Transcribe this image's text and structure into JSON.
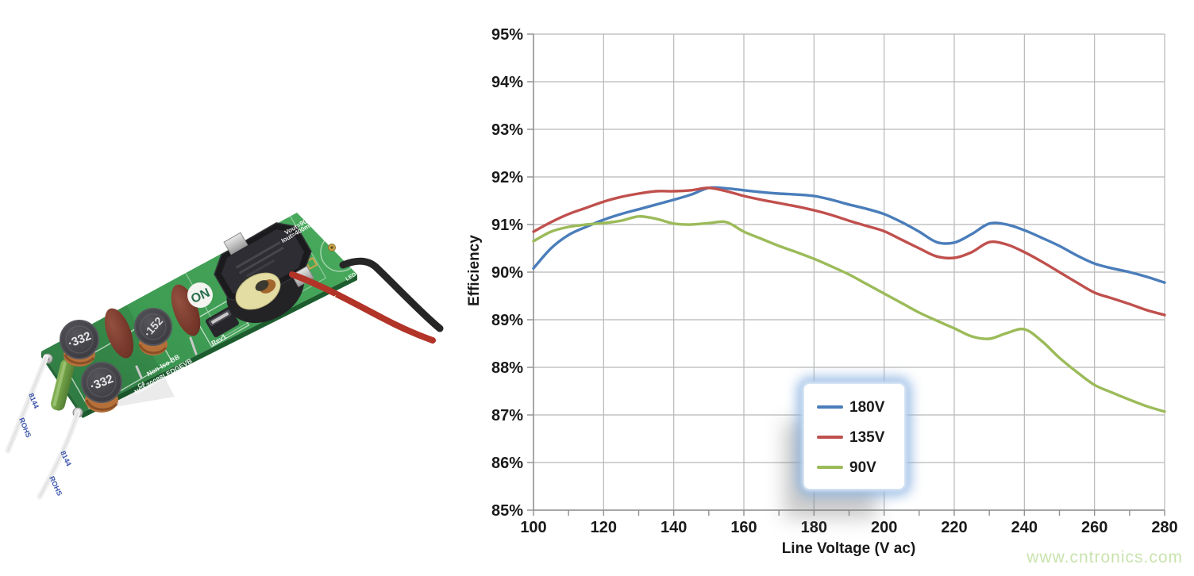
{
  "watermark": {
    "text": "www.cntronics.com",
    "color": "#c9e3ad"
  },
  "pcb_photo": {
    "description": "ON Semiconductor non-isolated LED driver evaluation board",
    "board_color": "#3d9a50",
    "logo_text": "ON",
    "silkscreen": {
      "vout": "Vout=90-160V",
      "iout": "Iout=400mA",
      "non_iso": "Non-Iso BB",
      "part_number": "NCL30088LEDGEVB",
      "rev": "Rev1",
      "led_out": "LED OUT",
      "led_minus": "LED-",
      "c4": "C4"
    },
    "component_markings": {
      "inductor1": "·332",
      "inductor2": "·332",
      "inductor3": "·152",
      "wire_marking_1": "8144",
      "wire_marking_2": "ROHS"
    }
  },
  "chart_data": {
    "type": "line",
    "title": "",
    "xlabel": "Line Voltage (V ac)",
    "ylabel": "Efficiency",
    "xlim": [
      100,
      280
    ],
    "ylim": [
      85,
      95
    ],
    "x_major_tick_step": 20,
    "x_minor_tick_step": 10,
    "y_tick_step": 1,
    "y_tick_suffix": "%",
    "grid": true,
    "grid_color": "#b8b8b8",
    "axis_color": "#8f8f8f",
    "legend_position": "inside-bottom-center",
    "x": [
      100,
      105,
      110,
      115,
      120,
      125,
      130,
      135,
      140,
      145,
      150,
      155,
      160,
      165,
      170,
      175,
      180,
      185,
      190,
      195,
      200,
      205,
      210,
      215,
      220,
      225,
      230,
      235,
      240,
      245,
      250,
      255,
      260,
      265,
      270,
      275,
      280
    ],
    "series": [
      {
        "name": "180V",
        "color": "#4a7dba",
        "values": [
          90.08,
          90.5,
          90.78,
          90.95,
          91.1,
          91.22,
          91.32,
          91.42,
          91.52,
          91.63,
          91.77,
          91.76,
          91.72,
          91.68,
          91.65,
          91.63,
          91.6,
          91.52,
          91.42,
          91.33,
          91.22,
          91.05,
          90.85,
          90.63,
          90.62,
          90.8,
          91.02,
          91.0,
          90.88,
          90.72,
          90.55,
          90.35,
          90.18,
          90.08,
          90.0,
          89.9,
          89.78
        ]
      },
      {
        "name": "135V",
        "color": "#c0504d",
        "values": [
          90.85,
          91.05,
          91.22,
          91.35,
          91.48,
          91.58,
          91.65,
          91.7,
          91.7,
          91.72,
          91.77,
          91.7,
          91.6,
          91.52,
          91.45,
          91.38,
          91.3,
          91.2,
          91.08,
          90.97,
          90.86,
          90.68,
          90.5,
          90.33,
          90.3,
          90.42,
          90.63,
          90.58,
          90.42,
          90.22,
          90.0,
          89.78,
          89.57,
          89.45,
          89.33,
          89.2,
          89.1
        ]
      },
      {
        "name": "90V",
        "color": "#9bbb59",
        "values": [
          90.65,
          90.85,
          90.95,
          91.0,
          91.03,
          91.08,
          91.17,
          91.12,
          91.02,
          91.0,
          91.03,
          91.05,
          90.85,
          90.7,
          90.55,
          90.42,
          90.28,
          90.12,
          89.95,
          89.75,
          89.55,
          89.35,
          89.15,
          88.98,
          88.82,
          88.65,
          88.6,
          88.72,
          88.8,
          88.55,
          88.2,
          87.9,
          87.63,
          87.47,
          87.32,
          87.18,
          87.07
        ]
      }
    ]
  }
}
